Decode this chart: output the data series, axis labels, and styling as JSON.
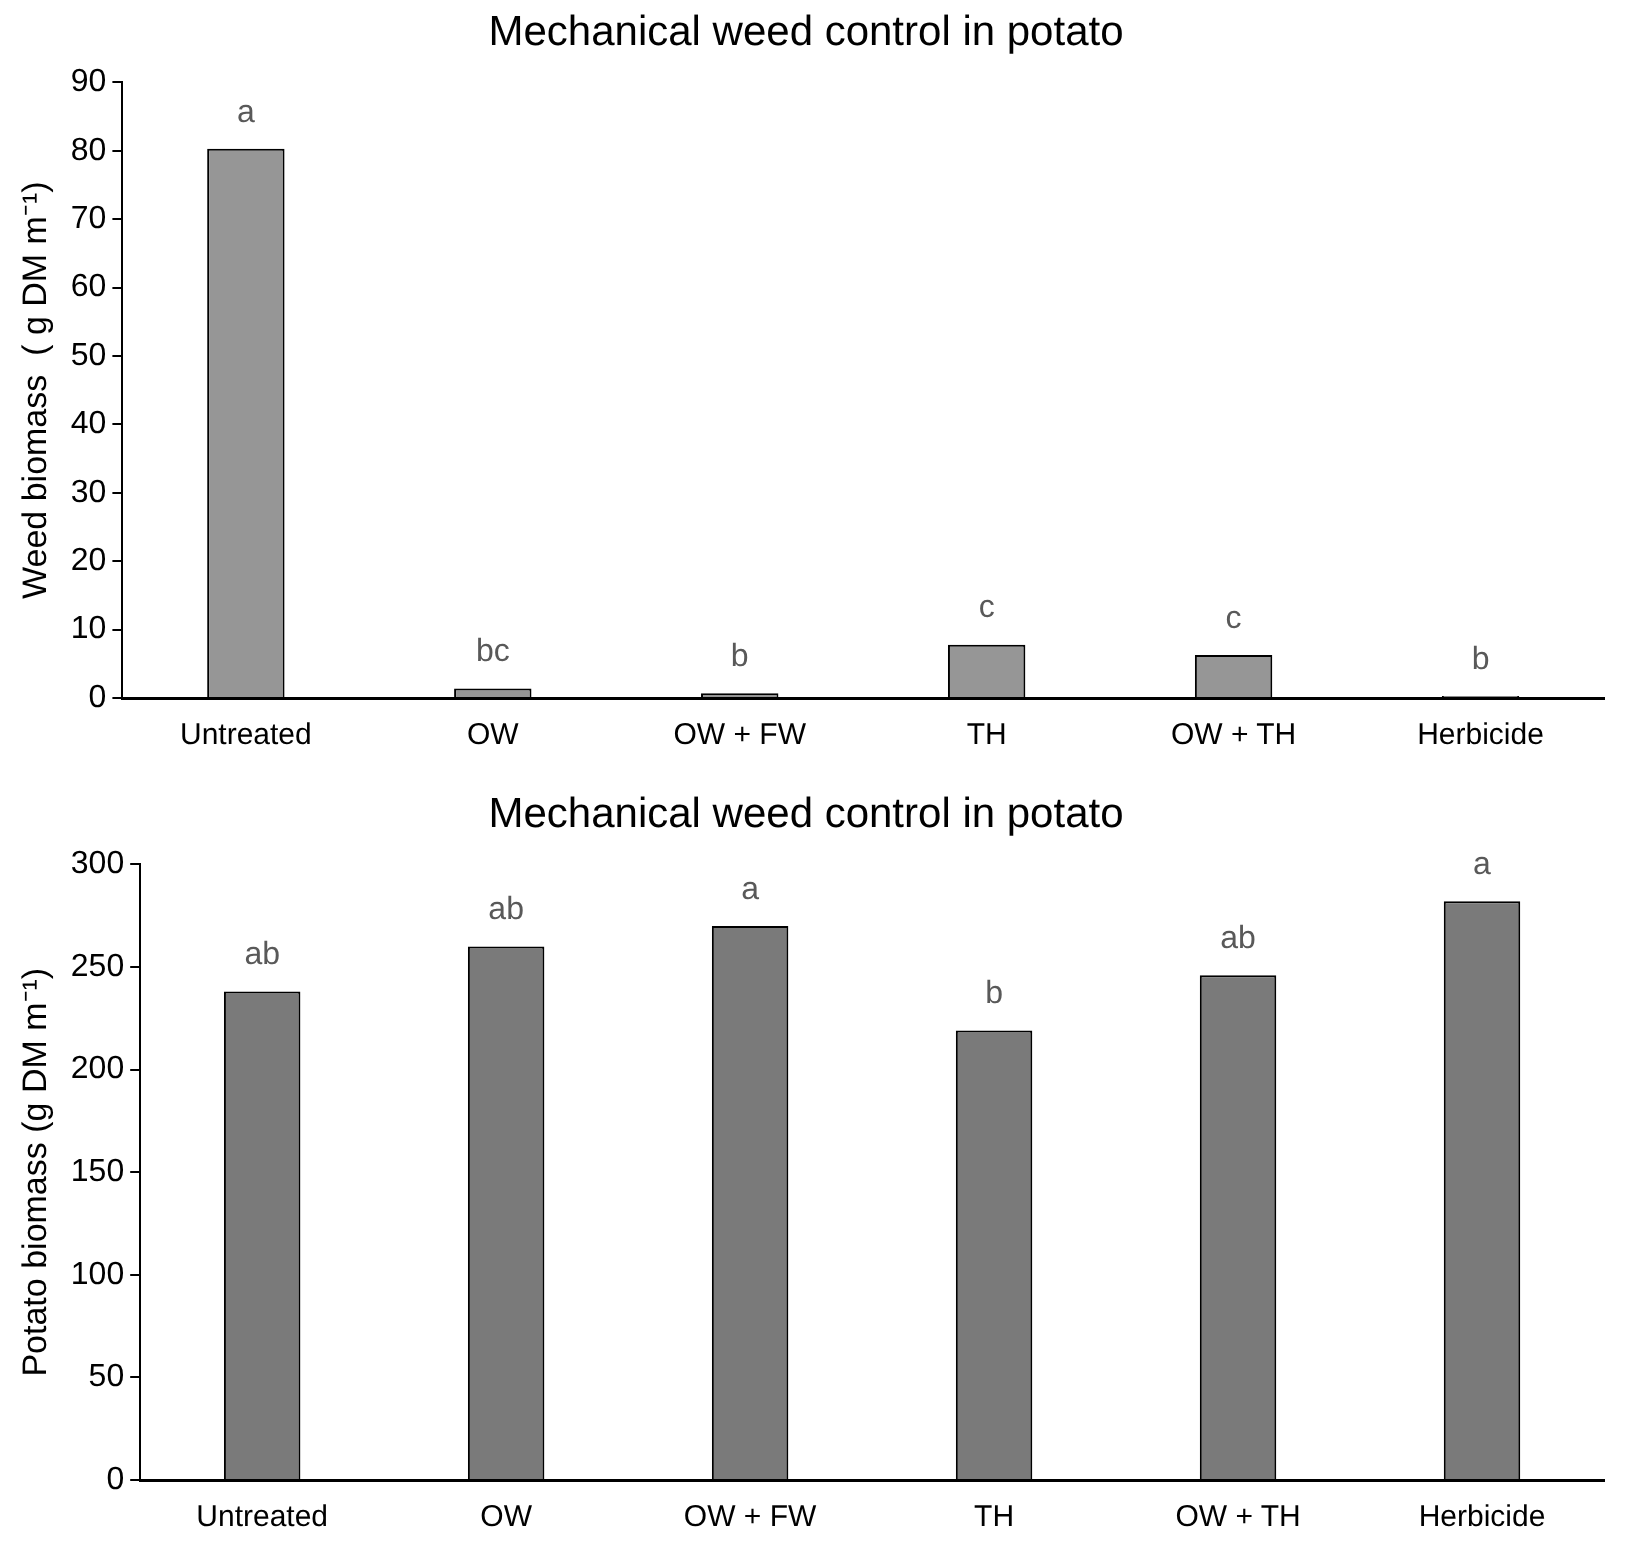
{
  "chart_data": [
    {
      "type": "bar",
      "title": "Mechanical weed control in potato",
      "ylabel": "Weed biomass  ( g DM m⁻¹)",
      "categories": [
        "Untreated",
        "OW",
        "OW + FW",
        "TH",
        "OW + TH",
        "Herbicide"
      ],
      "values": [
        80.3,
        1.4,
        0.7,
        7.8,
        6.3,
        0.3
      ],
      "color": "#969696",
      "ylim": [
        0,
        90
      ],
      "yticks": [
        0,
        10,
        20,
        30,
        40,
        50,
        60,
        70,
        80,
        90
      ],
      "grid": false,
      "annotations": [
        {
          "text": "a",
          "x": "Untreated",
          "y": 80.3
        },
        {
          "text": "bc",
          "x": "OW",
          "y": 1.4
        },
        {
          "text": "b",
          "x": "OW + FW",
          "y": 0.7
        },
        {
          "text": "c",
          "x": "TH",
          "y": 7.8
        },
        {
          "text": "c",
          "x": "OW + TH",
          "y": 6.3
        },
        {
          "text": "b",
          "x": "Herbicide",
          "y": 0.3
        }
      ]
    },
    {
      "type": "bar",
      "title": "Mechanical weed control in potato",
      "ylabel": "Potato biomass (g DM m⁻¹)",
      "categories": [
        "Untreated",
        "OW",
        "OW + FW",
        "TH",
        "OW + TH",
        "Herbicide"
      ],
      "values": [
        238,
        260,
        270,
        219,
        246,
        282
      ],
      "color": "#7a7a7a",
      "ylim": [
        0,
        300
      ],
      "yticks": [
        0,
        50,
        100,
        150,
        200,
        250,
        300
      ],
      "grid": false,
      "annotations": [
        {
          "text": "ab",
          "x": "Untreated",
          "y": 238
        },
        {
          "text": "ab",
          "x": "OW",
          "y": 260
        },
        {
          "text": "a",
          "x": "OW + FW",
          "y": 270
        },
        {
          "text": "b",
          "x": "TH",
          "y": 219
        },
        {
          "text": "ab",
          "x": "OW + TH",
          "y": 246
        },
        {
          "text": "a",
          "x": "Herbicide",
          "y": 282
        }
      ]
    }
  ]
}
